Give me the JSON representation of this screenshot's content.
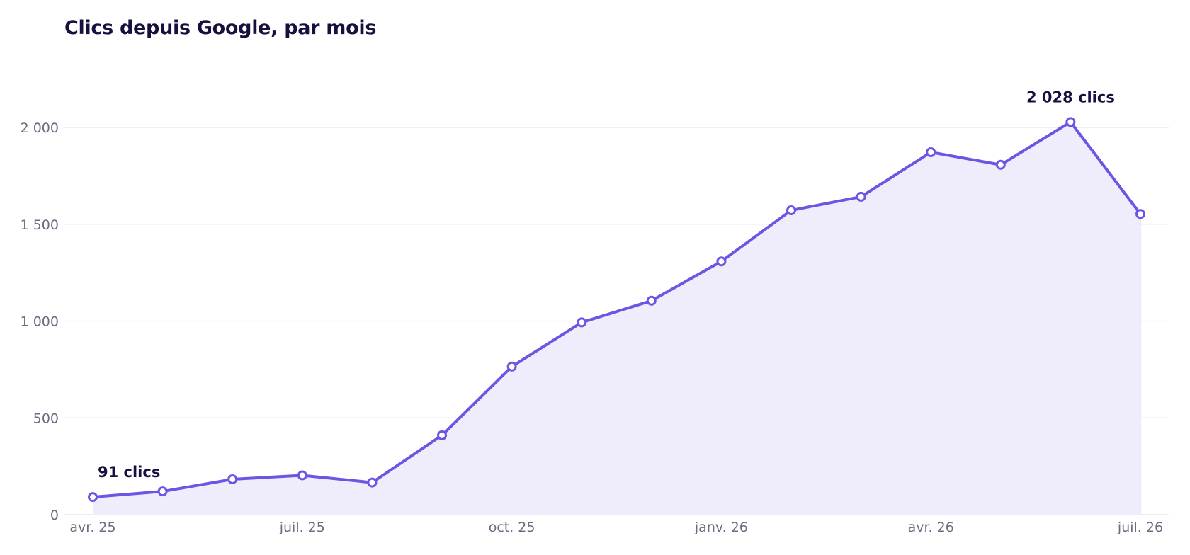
{
  "chart_data": {
    "type": "area",
    "title": "Clics depuis Google, par mois",
    "xlabel": "",
    "ylabel": "",
    "x": [
      "2025-04",
      "2025-05",
      "2025-06",
      "2025-07",
      "2025-08",
      "2025-09",
      "2025-10",
      "2025-11",
      "2025-12",
      "2026-01",
      "2026-02",
      "2026-03",
      "2026-04",
      "2026-05",
      "2026-06",
      "2026-07"
    ],
    "series": [
      {
        "values": [
          91,
          120,
          183,
          203,
          166,
          410,
          765,
          993,
          1105,
          1308,
          1572,
          1642,
          1872,
          1807,
          2028,
          1553
        ]
      }
    ],
    "ylim": [
      0,
      2000
    ],
    "yticks": [
      {
        "value": 0,
        "label": "0"
      },
      {
        "value": 500,
        "label": "500"
      },
      {
        "value": 1000,
        "label": "1 000"
      },
      {
        "value": 1500,
        "label": "1 500"
      },
      {
        "value": 2000,
        "label": "2 000"
      }
    ],
    "xticks": [
      {
        "index": 0,
        "label": "avr. 25"
      },
      {
        "index": 3,
        "label": "juil. 25"
      },
      {
        "index": 6,
        "label": "oct. 25"
      },
      {
        "index": 9,
        "label": "janv. 26"
      },
      {
        "index": 12,
        "label": "avr. 26"
      },
      {
        "index": 15,
        "label": "juil. 26"
      }
    ],
    "annotations": [
      {
        "index": 0,
        "label": "91 clics"
      },
      {
        "index": 14,
        "label": "2 028 clics"
      }
    ],
    "grid": true,
    "legend": "none",
    "colors": {
      "line": "#6b55e3",
      "area": "#efecfc",
      "grid": "#e4e4ea",
      "title": "#15113f",
      "tick": "#6d6b80"
    }
  }
}
